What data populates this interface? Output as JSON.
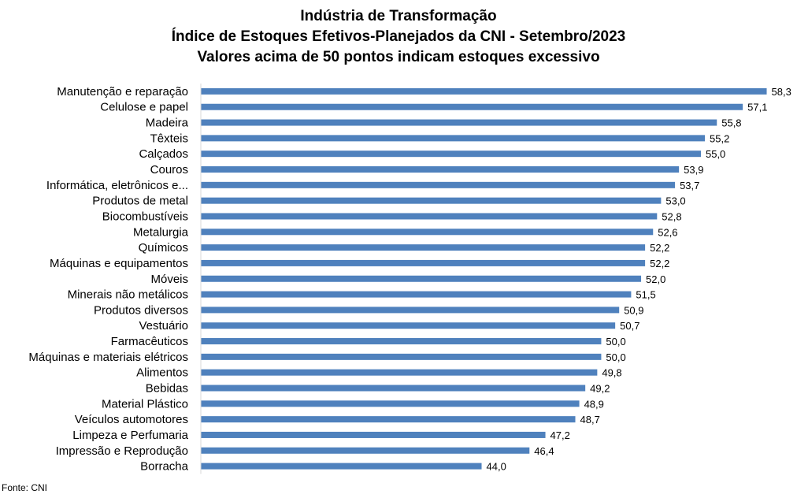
{
  "chart_data": {
    "type": "bar",
    "orientation": "horizontal",
    "title_lines": [
      "Indústria de Transformação",
      "Índice de Estoques Efetivos-Planejados da CNI - Setembro/2023",
      "Valores acima de 50 pontos indicam estoques excessivo"
    ],
    "categories": [
      "Manutenção e reparação",
      "Celulose e papel",
      "Madeira",
      "Têxteis",
      "Calçados",
      "Couros",
      "Informática, eletrônicos e...",
      "Produtos de metal",
      "Biocombustíveis",
      "Metalurgia",
      "Químicos",
      "Máquinas e equipamentos",
      "Móveis",
      "Minerais não metálicos",
      "Produtos diversos",
      "Vestuário",
      "Farmacêuticos",
      "Máquinas e materiais elétricos",
      "Alimentos",
      "Bebidas",
      "Material Plástico",
      "Veículos automotores",
      "Limpeza e Perfumaria",
      "Impressão e Reprodução",
      "Borracha"
    ],
    "values": [
      58.3,
      57.1,
      55.8,
      55.2,
      55.0,
      53.9,
      53.7,
      53.0,
      52.8,
      52.6,
      52.2,
      52.2,
      52.0,
      51.5,
      50.9,
      50.7,
      50.0,
      50.0,
      49.8,
      49.2,
      48.9,
      48.7,
      47.2,
      46.4,
      44.0
    ],
    "value_labels": [
      "58,3",
      "57,1",
      "55,8",
      "55,2",
      "55,0",
      "53,9",
      "53,7",
      "53,0",
      "52,8",
      "52,6",
      "52,2",
      "52,2",
      "52,0",
      "51,5",
      "50,9",
      "50,7",
      "50,0",
      "50,0",
      "49,8",
      "49,2",
      "48,9",
      "48,7",
      "47,2",
      "46,4",
      "44,0"
    ],
    "bar_color": "#4f81bd",
    "grid": false,
    "legend": "none"
  },
  "source_note": "Fonte: CNI"
}
